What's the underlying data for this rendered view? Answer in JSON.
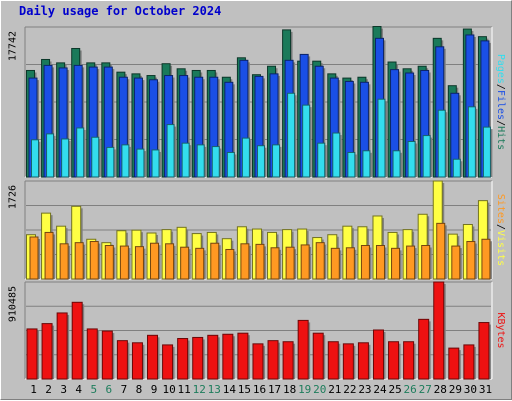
{
  "title": "Daily usage for October 2024",
  "colors": {
    "hits": "#1a7a5a",
    "files": "#1a4fe6",
    "pages": "#33ddee",
    "visits": "#ffff44",
    "sites": "#ff9922",
    "kbytes": "#ee1111",
    "day_label": "#000000",
    "weekend_label": "#1e7d5c",
    "title": "#0000cc"
  },
  "panels": {
    "top": {
      "max_label": "17742",
      "legend": [
        {
          "text": "Pages",
          "color": "#33ddee"
        },
        {
          "text": "/",
          "color": "#000000"
        },
        {
          "text": "Files",
          "color": "#1a4fe6"
        },
        {
          "text": "/",
          "color": "#000000"
        },
        {
          "text": "Hits",
          "color": "#1a7a5a"
        }
      ]
    },
    "middle": {
      "max_label": "1726",
      "legend": [
        {
          "text": "Sites",
          "color": "#ff9922"
        },
        {
          "text": "/",
          "color": "#000000"
        },
        {
          "text": "Visits",
          "color": "#ffff44"
        }
      ]
    },
    "bottom": {
      "max_label": "910485",
      "legend": [
        {
          "text": "KBytes",
          "color": "#ee1111"
        }
      ]
    }
  },
  "chart_data": {
    "type": "bar",
    "title": "Daily usage for October 2024",
    "categories": [
      "1",
      "2",
      "3",
      "4",
      "5",
      "6",
      "7",
      "8",
      "9",
      "10",
      "11",
      "12",
      "13",
      "14",
      "15",
      "16",
      "17",
      "18",
      "19",
      "20",
      "21",
      "22",
      "23",
      "24",
      "25",
      "26",
      "27",
      "28",
      "29",
      "30",
      "31"
    ],
    "weekend_days": [
      "5",
      "6",
      "12",
      "13",
      "19",
      "20",
      "26",
      "27"
    ],
    "panels": [
      {
        "name": "top",
        "ylim": [
          0,
          17742
        ],
        "series": [
          {
            "name": "Hits",
            "values": [
              12600,
              13900,
              13500,
              15200,
              13500,
              13500,
              12400,
              12200,
              12000,
              13400,
              12800,
              12600,
              12600,
              11800,
              14100,
              12100,
              13100,
              17400,
              13700,
              13700,
              12200,
              11700,
              11800,
              17800,
              13600,
              12800,
              13100,
              16400,
              10800,
              17500,
              16600
            ]
          },
          {
            "name": "Files",
            "values": [
              11700,
              13200,
              12900,
              13200,
              13000,
              13000,
              11800,
              11700,
              11500,
              12000,
              12000,
              11800,
              11800,
              11200,
              13800,
              11900,
              12200,
              13800,
              14500,
              13100,
              11700,
              11300,
              11200,
              16400,
              12700,
              12300,
              12600,
              15400,
              9900,
              16800,
              16100
            ]
          },
          {
            "name": "Pages",
            "values": [
              4400,
              5100,
              4500,
              5800,
              4700,
              3500,
              3800,
              3300,
              3200,
              6200,
              4000,
              3800,
              3600,
              2900,
              4600,
              3700,
              3800,
              9900,
              8500,
              4000,
              5200,
              2900,
              3100,
              9200,
              3100,
              4200,
              4900,
              7900,
              2100,
              8300,
              5900
            ]
          }
        ]
      },
      {
        "name": "middle",
        "ylim": [
          0,
          1726
        ],
        "series": [
          {
            "name": "Visits",
            "values": [
              780,
              1160,
              930,
              1280,
              700,
              640,
              850,
              860,
              810,
              870,
              910,
              800,
              820,
              710,
              920,
              880,
              820,
              870,
              880,
              730,
              780,
              930,
              920,
              1110,
              820,
              870,
              1140,
              1726,
              790,
              960,
              1380
            ]
          },
          {
            "name": "Sites",
            "values": [
              740,
              820,
              620,
              640,
              660,
              590,
              580,
              570,
              630,
              620,
              560,
              540,
              630,
              520,
              620,
              610,
              550,
              560,
              600,
              640,
              540,
              550,
              590,
              590,
              540,
              580,
              590,
              980,
              580,
              660,
              700
            ]
          }
        ]
      },
      {
        "name": "bottom",
        "ylim": [
          0,
          910485
        ],
        "series": [
          {
            "name": "KBytes",
            "values": [
              470000,
              520000,
              620000,
              720000,
              470000,
              450000,
              360000,
              340000,
              410000,
              320000,
              380000,
              390000,
              410000,
              420000,
              430000,
              330000,
              360000,
              350000,
              550000,
              430000,
              350000,
              330000,
              340000,
              460000,
              350000,
              350000,
              560000,
              910485,
              290000,
              320000,
              530000
            ]
          }
        ]
      }
    ],
    "xlabel": "",
    "ylabel": ""
  }
}
